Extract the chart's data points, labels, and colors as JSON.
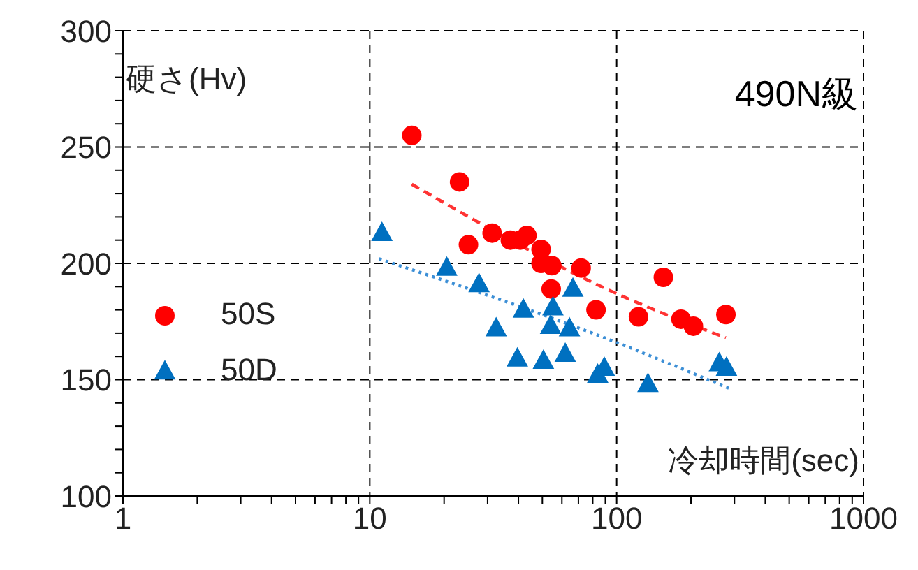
{
  "chart_data": {
    "type": "scatter",
    "title": "490N級",
    "xlabel": "冷却時間(sec)",
    "ylabel": "硬さ(Hv)",
    "log": "x",
    "xlim": [
      1,
      1000
    ],
    "ylim": [
      100,
      300
    ],
    "xticks": [
      1,
      {
        "value": 2,
        "label": null
      },
      {
        "value": 3,
        "label": null
      },
      {
        "value": 4,
        "label": null
      },
      {
        "value": 5,
        "label": null
      },
      {
        "value": 6,
        "label": null
      },
      {
        "value": 7,
        "label": null
      },
      {
        "value": 8,
        "label": null
      },
      {
        "value": 9,
        "label": null
      },
      10,
      {
        "value": 20,
        "label": null
      },
      {
        "value": 30,
        "label": null
      },
      {
        "value": 40,
        "label": null
      },
      {
        "value": 50,
        "label": null
      },
      {
        "value": 60,
        "label": null
      },
      {
        "value": 70,
        "label": null
      },
      {
        "value": 80,
        "label": null
      },
      {
        "value": 90,
        "label": null
      },
      100,
      {
        "value": 200,
        "label": null
      },
      {
        "value": 300,
        "label": null
      },
      {
        "value": 400,
        "label": null
      },
      {
        "value": 500,
        "label": null
      },
      {
        "value": 600,
        "label": null
      },
      {
        "value": 700,
        "label": null
      },
      {
        "value": 800,
        "label": null
      },
      {
        "value": 900,
        "label": null
      },
      1000
    ],
    "yticks": [
      100,
      {
        "value": 110,
        "label": null
      },
      {
        "value": 120,
        "label": null
      },
      {
        "value": 130,
        "label": null
      },
      {
        "value": 140,
        "label": null
      },
      150,
      {
        "value": 160,
        "label": null
      },
      {
        "value": 170,
        "label": null
      },
      {
        "value": 180,
        "label": null
      },
      {
        "value": 190,
        "label": null
      },
      200,
      {
        "value": 210,
        "label": null
      },
      {
        "value": 220,
        "label": null
      },
      {
        "value": 230,
        "label": null
      },
      {
        "value": 240,
        "label": null
      },
      250,
      {
        "value": 260,
        "label": null
      },
      {
        "value": 270,
        "label": null
      },
      {
        "value": 280,
        "label": null
      },
      {
        "value": 290,
        "label": null
      },
      300
    ],
    "grid": true,
    "legend": "left",
    "series": [
      {
        "name": "50S",
        "type": "scatter",
        "color": "#ff0000",
        "marker": "circle",
        "x": [
          14.8,
          23.1,
          25.1,
          31.3,
          37.1,
          40.7,
          43.3,
          49.4,
          49.4,
          54.6,
          54.3,
          71.8,
          82.5,
          122.6,
          154.6,
          182.3,
          204.6,
          277.1
        ],
        "values": [
          255,
          235,
          208,
          213,
          210,
          210,
          212,
          206,
          200,
          199,
          189,
          198,
          180,
          177,
          194,
          176,
          173,
          178
        ]
      },
      {
        "name": "50D",
        "type": "scatter",
        "color": "#0070c0",
        "marker": "triangle",
        "x": [
          11.2,
          20.5,
          27.7,
          32.5,
          41.9,
          39.6,
          50.5,
          55.2,
          54.0,
          64.4,
          61.9,
          66.5,
          83.8,
          89.1,
          133.9,
          260.6,
          278.6
        ],
        "values": [
          213,
          198,
          191,
          172,
          180,
          159,
          158,
          181,
          173,
          172,
          161,
          189,
          152,
          155,
          148,
          157,
          155
        ]
      },
      {
        "type": "line",
        "color": "#ff3333",
        "line_style": "dashed",
        "marker": "none",
        "x": [
          14.8,
          100,
          277
        ],
        "values": [
          234,
          187,
          168
        ]
      },
      {
        "type": "line",
        "color": "#3c8fd6",
        "line_style": "dotted",
        "marker": "none",
        "x": [
          10.9,
          100,
          289
        ],
        "values": [
          202,
          166,
          146
        ]
      }
    ]
  }
}
